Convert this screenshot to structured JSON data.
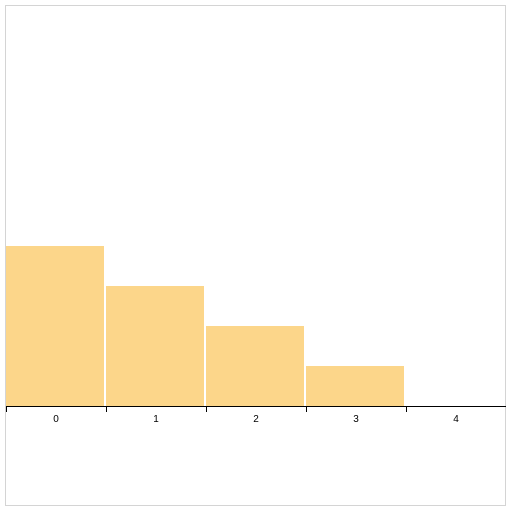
{
  "chart_data": {
    "type": "bar",
    "categories": [
      "0",
      "1",
      "2",
      "3",
      "4"
    ],
    "values": [
      4,
      3,
      2,
      1,
      0
    ],
    "ylim": [
      0,
      10
    ],
    "grid": false,
    "bar_color": "#fcd68a",
    "axis_color": "#000000",
    "frame_color": "#d4d4d4"
  }
}
